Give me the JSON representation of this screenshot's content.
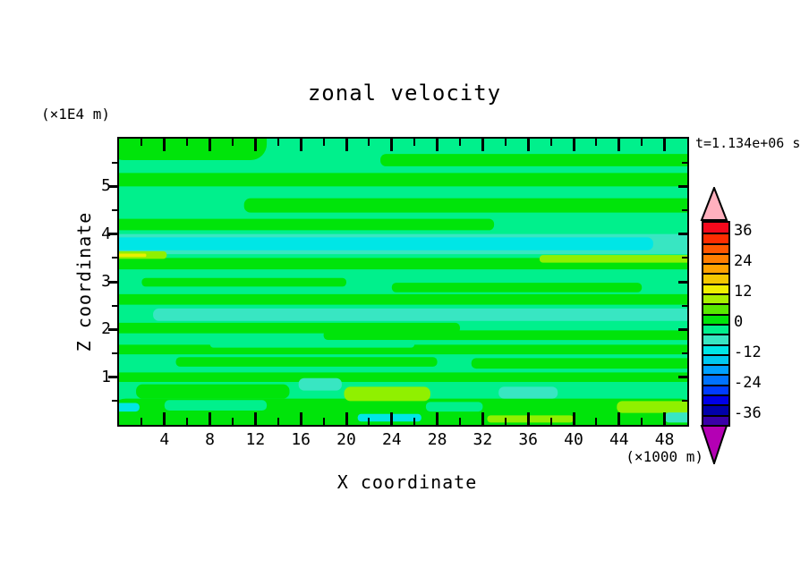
{
  "chart_data": {
    "type": "filled_contour",
    "title": "zonal velocity",
    "timestamp": "t=1.134e+06 s",
    "xlabel": "X coordinate",
    "x_unit": "(×1000 m)",
    "ylabel": "Z coordinate",
    "y_unit": "(×1E4 m)",
    "x_axis": {
      "range": [
        0,
        50
      ],
      "major_ticks": [
        4,
        8,
        12,
        16,
        20,
        24,
        28,
        32,
        36,
        40,
        44,
        48
      ],
      "minor_ticks": [
        2,
        6,
        10,
        14,
        18,
        22,
        26,
        30,
        34,
        38,
        42,
        46
      ]
    },
    "z_axis": {
      "range": [
        0,
        6
      ],
      "major_ticks": [
        1,
        2,
        3,
        4,
        5
      ],
      "minor_ticks": [
        0.5,
        1.5,
        2.5,
        3.5,
        4.5,
        5.5
      ]
    },
    "colorbar": {
      "value_min": -40,
      "value_max": 40,
      "cell_step": 4,
      "tick_values": [
        36,
        24,
        12,
        0,
        -12,
        -24,
        -36
      ],
      "tick_labels": [
        "36",
        "24",
        "12",
        "0",
        "-12",
        "-24",
        "-36"
      ],
      "over_arrow_color": "#FFB0BE",
      "under_arrow_color": "#B400B4",
      "cells_top_to_bottom": [
        {
          "range": [
            36,
            40
          ],
          "color": "#F5091C"
        },
        {
          "range": [
            32,
            36
          ],
          "color": "#FF2D00"
        },
        {
          "range": [
            28,
            32
          ],
          "color": "#FF5700"
        },
        {
          "range": [
            24,
            28
          ],
          "color": "#FF7F00"
        },
        {
          "range": [
            20,
            24
          ],
          "color": "#FFA300"
        },
        {
          "range": [
            16,
            20
          ],
          "color": "#F5C800"
        },
        {
          "range": [
            12,
            16
          ],
          "color": "#F0F000"
        },
        {
          "range": [
            8,
            12
          ],
          "color": "#A8F000"
        },
        {
          "range": [
            4,
            8
          ],
          "color": "#58E800"
        },
        {
          "range": [
            0,
            4
          ],
          "color": "#00E40A"
        },
        {
          "range": [
            -4,
            0
          ],
          "color": "#00F08C"
        },
        {
          "range": [
            -8,
            -4
          ],
          "color": "#38E6C2"
        },
        {
          "range": [
            -12,
            -8
          ],
          "color": "#00E6E6"
        },
        {
          "range": [
            -16,
            -12
          ],
          "color": "#00C8F0"
        },
        {
          "range": [
            -20,
            -16
          ],
          "color": "#00A0FF"
        },
        {
          "range": [
            -24,
            -20
          ],
          "color": "#0072FF"
        },
        {
          "range": [
            -28,
            -24
          ],
          "color": "#003CFF"
        },
        {
          "range": [
            -32,
            -28
          ],
          "color": "#0000E6"
        },
        {
          "range": [
            -36,
            -32
          ],
          "color": "#0000AA"
        },
        {
          "range": [
            -40,
            -36
          ],
          "color": "#3A00A8"
        }
      ]
    },
    "field": {
      "background_color": "#00F08C",
      "background_value_band": "-4..0",
      "palette": {
        "spring": "#00F08C",
        "green": "#00E40A",
        "turquoise": "#38E6C2",
        "cyan": "#00E6E6",
        "chartreuse": "#90F000",
        "yellow": "#E8F000"
      },
      "features": [
        {
          "x": [
            0,
            13
          ],
          "z": [
            5.55,
            6.0
          ],
          "c": "green"
        },
        {
          "x": [
            23,
            50
          ],
          "z": [
            5.42,
            5.68
          ],
          "c": "green"
        },
        {
          "x": [
            0,
            50
          ],
          "z": [
            5.0,
            5.28
          ],
          "c": "green"
        },
        {
          "x": [
            11,
            50
          ],
          "z": [
            4.45,
            4.75
          ],
          "c": "green"
        },
        {
          "x": [
            0,
            33
          ],
          "z": [
            4.08,
            4.32
          ],
          "c": "green"
        },
        {
          "x": [
            0,
            50
          ],
          "z": [
            3.58,
            4.0
          ],
          "c": "turquoise"
        },
        {
          "x": [
            0,
            47
          ],
          "z": [
            3.66,
            3.93
          ],
          "c": "cyan"
        },
        {
          "x": [
            0,
            50
          ],
          "z": [
            3.26,
            3.5
          ],
          "c": "green"
        },
        {
          "x": [
            0,
            4.2
          ],
          "z": [
            3.48,
            3.64
          ],
          "c": "chartreuse"
        },
        {
          "x": [
            0,
            2.4
          ],
          "z": [
            3.52,
            3.59
          ],
          "c": "yellow"
        },
        {
          "x": [
            37,
            50
          ],
          "z": [
            3.4,
            3.56
          ],
          "c": "chartreuse"
        },
        {
          "x": [
            2,
            20
          ],
          "z": [
            2.9,
            3.08
          ],
          "c": "green"
        },
        {
          "x": [
            24,
            46
          ],
          "z": [
            2.78,
            2.98
          ],
          "c": "green"
        },
        {
          "x": [
            0,
            50
          ],
          "z": [
            2.52,
            2.74
          ],
          "c": "green"
        },
        {
          "x": [
            3,
            50
          ],
          "z": [
            2.18,
            2.44
          ],
          "c": "turquoise"
        },
        {
          "x": [
            0,
            30
          ],
          "z": [
            1.92,
            2.14
          ],
          "c": "green"
        },
        {
          "x": [
            18,
            50
          ],
          "z": [
            1.78,
            1.98
          ],
          "c": "green"
        },
        {
          "x": [
            0,
            50
          ],
          "z": [
            1.48,
            1.68
          ],
          "c": "green"
        },
        {
          "x": [
            8,
            26
          ],
          "z": [
            1.62,
            1.78
          ],
          "c": "spring"
        },
        {
          "x": [
            5,
            28
          ],
          "z": [
            1.22,
            1.42
          ],
          "c": "green"
        },
        {
          "x": [
            31,
            50
          ],
          "z": [
            1.18,
            1.4
          ],
          "c": "green"
        },
        {
          "x": [
            0,
            50
          ],
          "z": [
            0.9,
            1.1
          ],
          "c": "green"
        },
        {
          "x": [
            1.5,
            15
          ],
          "z": [
            0.55,
            0.85
          ],
          "c": "green"
        },
        {
          "x": [
            15.8,
            19.6
          ],
          "z": [
            0.72,
            0.98
          ],
          "c": "turquoise"
        },
        {
          "x": [
            0,
            50
          ],
          "z": [
            0.0,
            0.55
          ],
          "c": "green"
        },
        {
          "x": [
            4,
            13
          ],
          "z": [
            0.3,
            0.52
          ],
          "c": "spring"
        },
        {
          "x": [
            27,
            32
          ],
          "z": [
            0.28,
            0.48
          ],
          "c": "spring"
        },
        {
          "x": [
            19.8,
            27.4
          ],
          "z": [
            0.5,
            0.8
          ],
          "c": "chartreuse"
        },
        {
          "x": [
            33.4,
            38.6
          ],
          "z": [
            0.55,
            0.8
          ],
          "c": "turquoise"
        },
        {
          "x": [
            43.8,
            50
          ],
          "z": [
            0.25,
            0.5
          ],
          "c": "chartreuse"
        },
        {
          "x": [
            21,
            26.6
          ],
          "z": [
            0.07,
            0.23
          ],
          "c": "cyan"
        },
        {
          "x": [
            32.4,
            40
          ],
          "z": [
            0.05,
            0.2
          ],
          "c": "chartreuse"
        },
        {
          "x": [
            48,
            50
          ],
          "z": [
            0.05,
            0.26
          ],
          "c": "turquoise"
        },
        {
          "x": [
            0,
            1.8
          ],
          "z": [
            0.28,
            0.46
          ],
          "c": "cyan"
        }
      ]
    }
  }
}
